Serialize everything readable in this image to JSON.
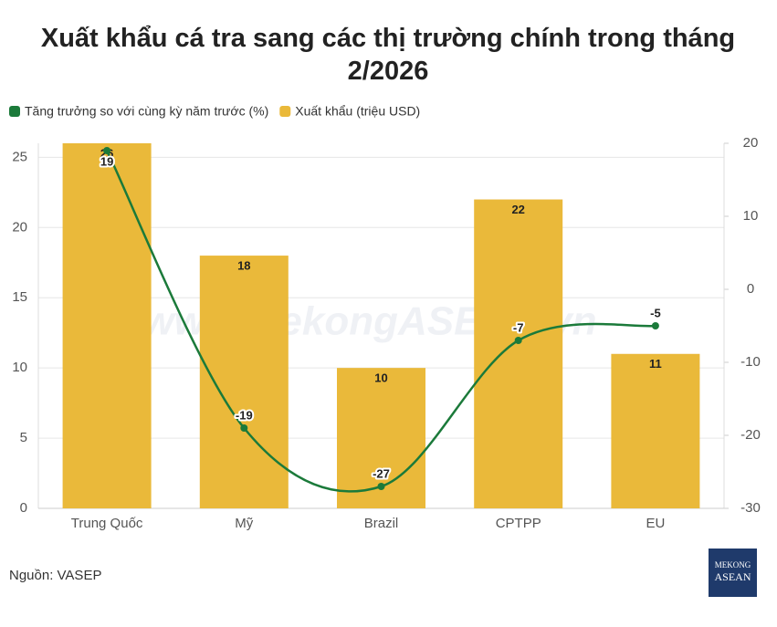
{
  "chart_data": {
    "type": "combo",
    "title": "Xuất khẩu cá tra sang các thị trường chính trong tháng 2/2026",
    "categories": [
      "Trung Quốc",
      "Mỹ",
      "Brazil",
      "CPTPP",
      "EU"
    ],
    "series": [
      {
        "name": "Tăng trưởng so với cùng kỳ năm trước (%)",
        "type": "line",
        "color": "#1b7a3a",
        "axis": "y2",
        "values": [
          19,
          -19,
          -27,
          -7,
          -5
        ]
      },
      {
        "name": "Xuất khẩu (triệu USD)",
        "type": "bar",
        "color": "#eab93a",
        "values": [
          26,
          18,
          10,
          22,
          11
        ]
      }
    ],
    "ylim": [
      0,
      26
    ],
    "yticks": [
      0,
      5,
      10,
      15,
      20,
      25
    ],
    "y2lim": [
      -30,
      20
    ],
    "y2ticks": [
      -30,
      -20,
      -10,
      0,
      10,
      20
    ],
    "grid": true,
    "legend": "top-left",
    "watermark": "www.MekongASEAN.vn",
    "source": "Nguồn: VASEP",
    "logo": [
      "MEKONG",
      "ASEAN"
    ]
  }
}
